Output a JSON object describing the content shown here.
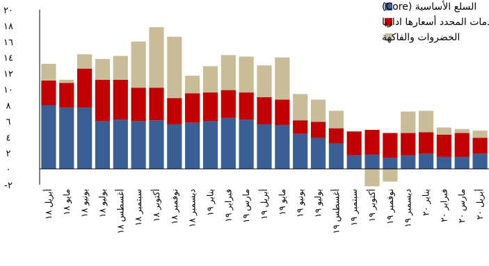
{
  "chart_data": {
    "type": "bar",
    "stacked": true,
    "title": "",
    "xlabel": "",
    "ylabel": "",
    "ylim": [
      -2,
      20
    ],
    "yticks": [
      -2,
      0,
      2,
      4,
      6,
      8,
      10,
      12,
      14,
      16,
      18,
      20
    ],
    "ytick_labels": [
      "-٢",
      "٠",
      "٢",
      "٤",
      "٦",
      "٨",
      "١٠",
      "١٢",
      "١٤",
      "١٦",
      "١٨",
      "٢٠"
    ],
    "grid": false,
    "legend_position": "top-right",
    "categories": [
      "أبريل ١٨",
      "مايو ١٨",
      "يونيو ١٨",
      "يوليو ١٨",
      "أغسطس ١٨",
      "سبتمبر ١٨",
      "أكتوبر ١٨",
      "نوفمبر ١٨",
      "ديسمبر ١٨",
      "يناير ١٩",
      "فبراير ١٩",
      "مارس ١٩",
      "أبريل ١٩",
      "مايو ١٩",
      "يونيو ١٩",
      "يوليو ١٩",
      "أغسطس ١٩",
      "سبتمبر ١٩",
      "أكتوبر ١٩",
      "نوفمبر ١٩",
      "ديسمبر ١٩",
      "يناير ٢٠",
      "فبراير ٢٠",
      "مارس ٢٠",
      "أبريل ٢٠"
    ],
    "series": [
      {
        "name": "السلع الأساسية (Core)",
        "color": "#3A5F94",
        "values": [
          8.0,
          7.7,
          7.7,
          6.0,
          6.2,
          6.0,
          6.1,
          5.6,
          5.8,
          6.0,
          6.4,
          6.2,
          5.6,
          5.5,
          4.4,
          3.9,
          3.2,
          1.7,
          1.8,
          1.4,
          1.7,
          1.9,
          1.5,
          1.5,
          1.9
        ]
      },
      {
        "name": "السلع والخدمات المحدد أسعارها اداريا",
        "color": "#C00000",
        "values": [
          3.1,
          3.1,
          4.9,
          5.2,
          5.0,
          4.2,
          4.1,
          3.3,
          3.7,
          3.6,
          3.5,
          3.4,
          3.4,
          3.2,
          1.7,
          2.0,
          1.9,
          3.0,
          3.1,
          3.1,
          2.8,
          2.7,
          2.8,
          3.0,
          2.0
        ]
      },
      {
        "name": "الخضروات والفاكهة",
        "color": "#C9BC98",
        "values": [
          2.1,
          0.4,
          1.8,
          2.6,
          3.0,
          5.8,
          7.6,
          7.7,
          2.2,
          3.3,
          4.4,
          4.5,
          4.0,
          5.3,
          3.3,
          2.8,
          2.2,
          0.0,
          -2.2,
          -1.6,
          2.7,
          2.7,
          0.9,
          0.5,
          0.9
        ]
      }
    ]
  }
}
